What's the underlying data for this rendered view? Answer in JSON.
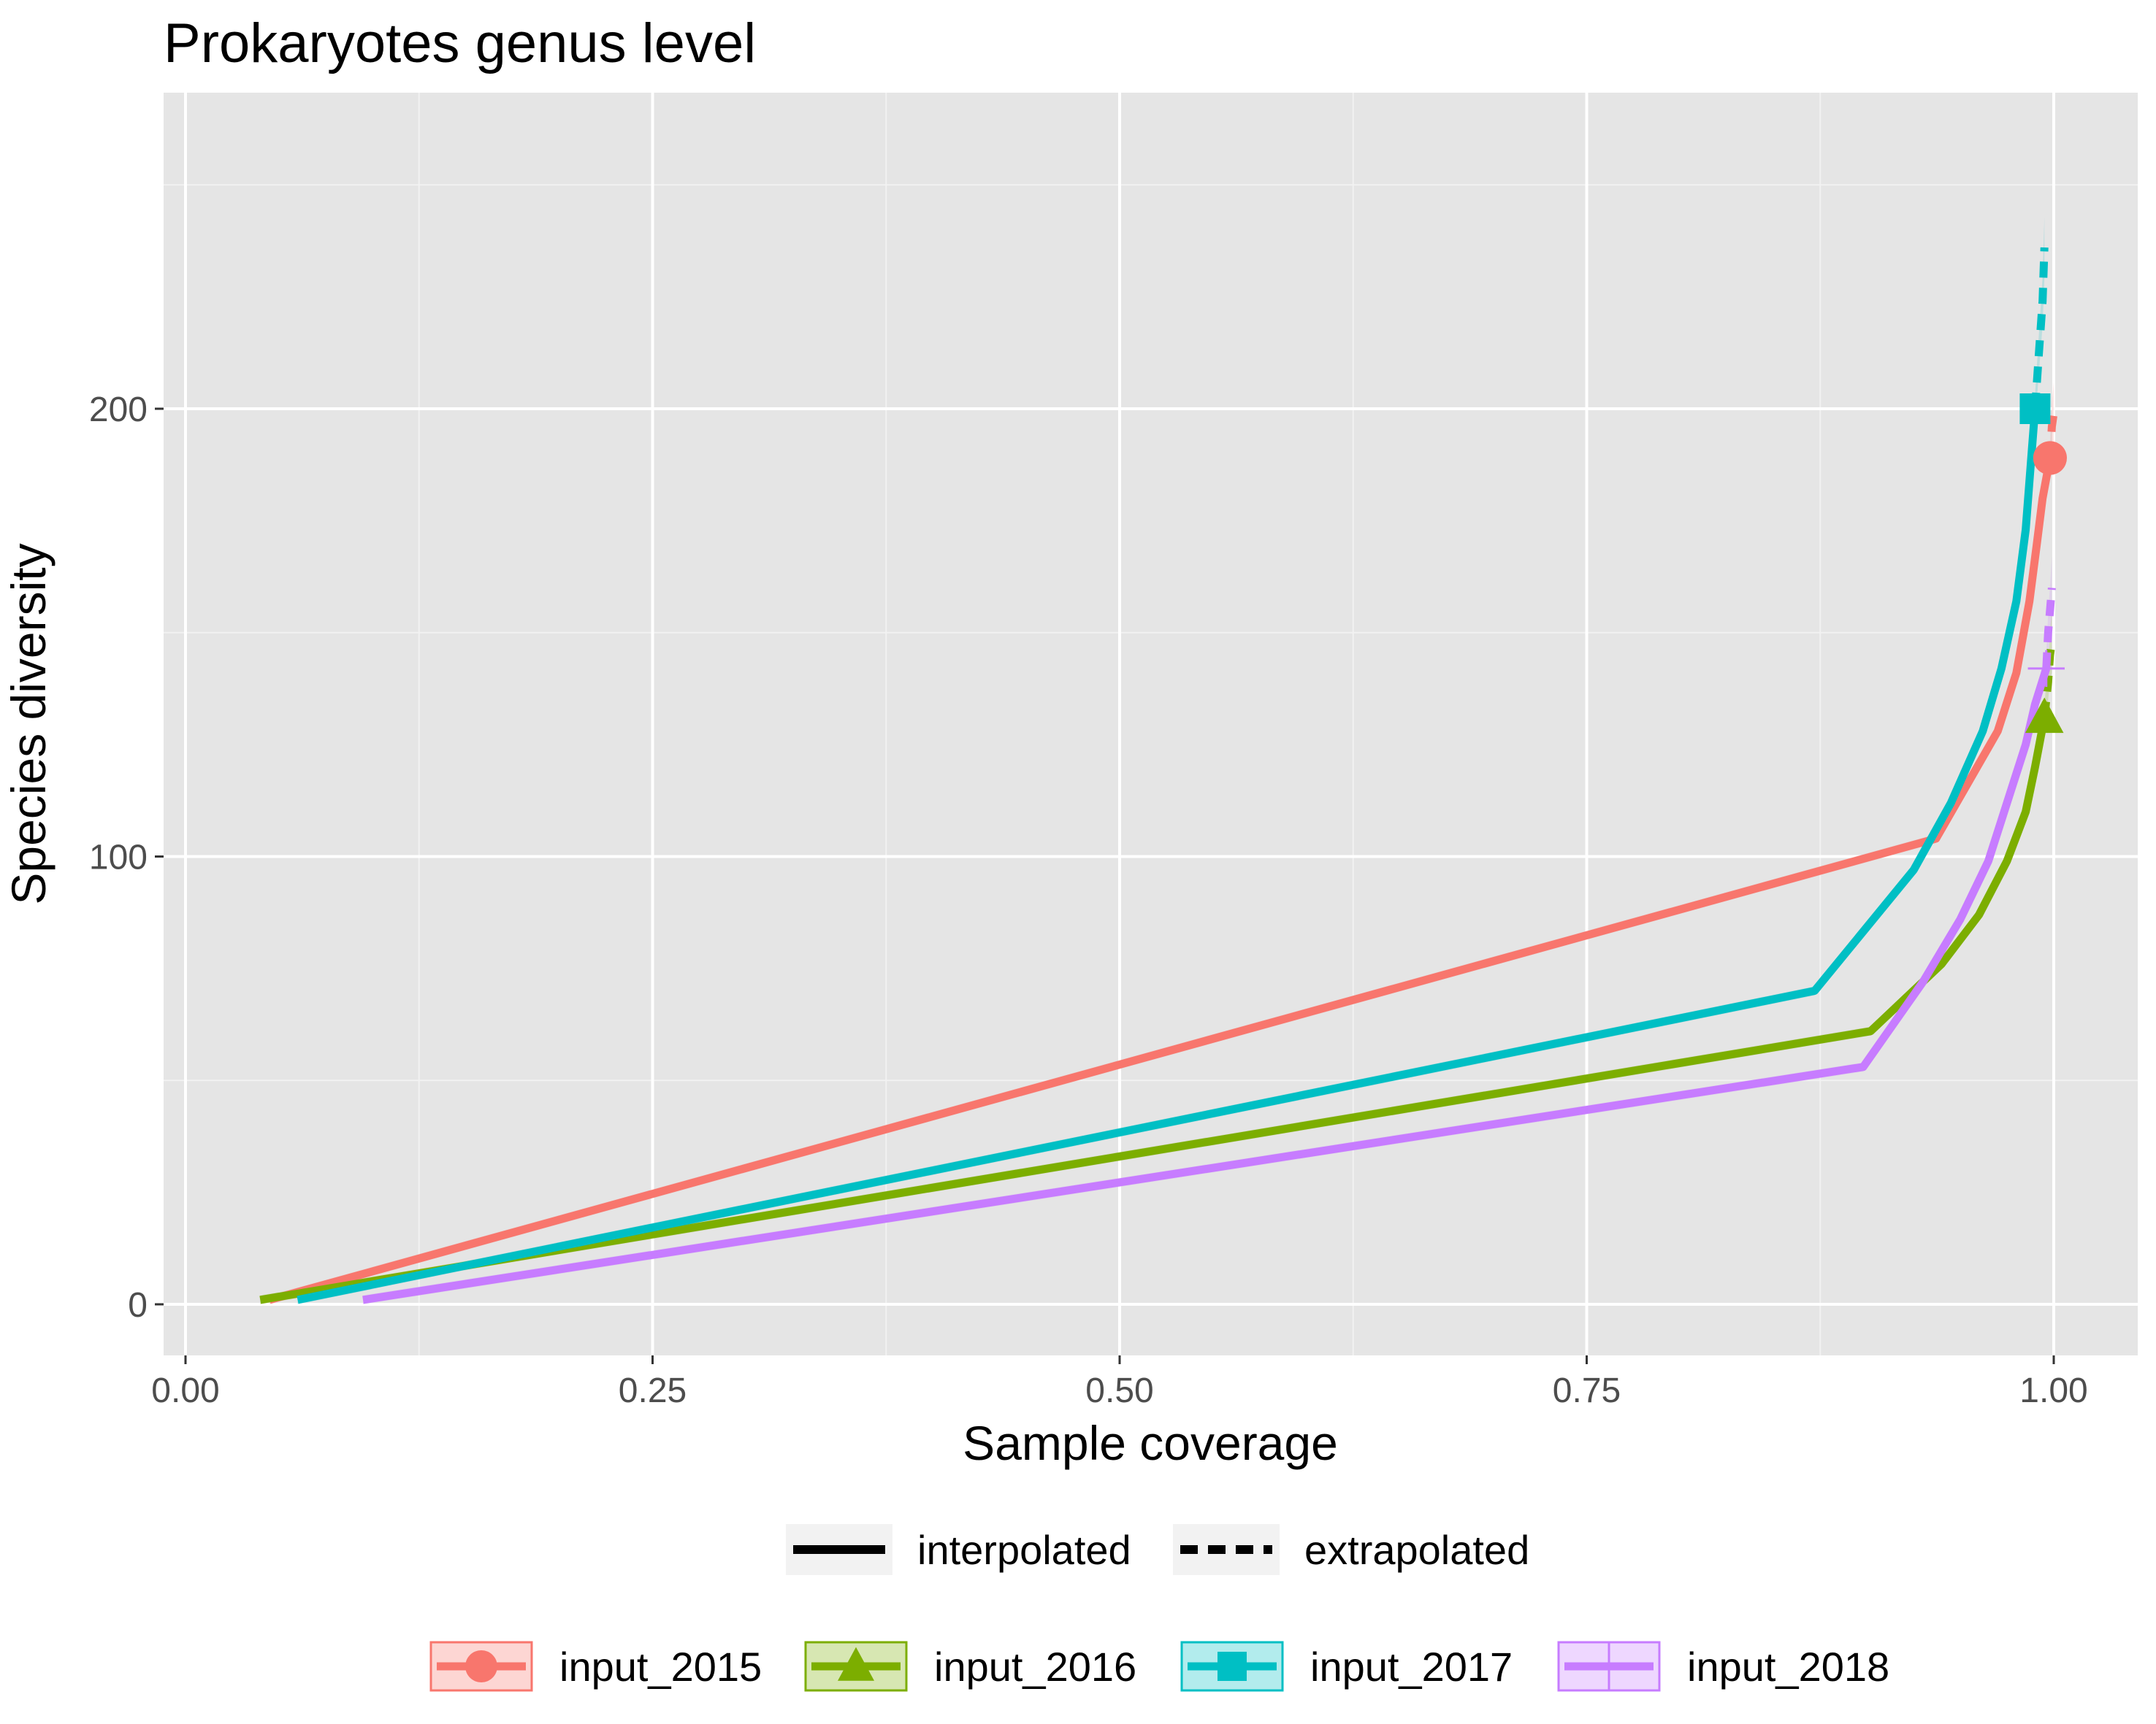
{
  "chart_data": {
    "type": "line",
    "title": "Prokaryotes genus level",
    "xlabel": "Sample coverage",
    "ylabel": "Species diversity",
    "xlim": [
      -0.01,
      1.05
    ],
    "ylim": [
      -12,
      270
    ],
    "x_ticks": [
      0.0,
      0.25,
      0.5,
      0.75,
      1.0
    ],
    "x_tick_labels": [
      "0.00",
      "0.25",
      "0.50",
      "0.75",
      "1.00"
    ],
    "y_ticks": [
      0,
      100,
      200
    ],
    "y_tick_labels": [
      "0",
      "100",
      "200"
    ],
    "grid": true,
    "background": "#e5e5e5",
    "linetype_legend": {
      "position": "bottom",
      "items": [
        {
          "label": "interpolated",
          "linetype": "solid"
        },
        {
          "label": "extrapolated",
          "linetype": "dashed"
        }
      ]
    },
    "series_legend": {
      "position": "bottom",
      "items": [
        {
          "label": "input_2015",
          "shape": "circle"
        },
        {
          "label": "input_2016",
          "shape": "triangle"
        },
        {
          "label": "input_2017",
          "shape": "square"
        },
        {
          "label": "input_2018",
          "shape": "cross"
        }
      ]
    },
    "series": [
      {
        "name": "input_2015",
        "color": "#f8766d",
        "marker": "circle",
        "observed": [
          0.998,
          189
        ],
        "interpolated": [
          [
            0.045,
            1
          ],
          [
            0.937,
            104
          ],
          [
            0.97,
            128
          ],
          [
            0.98,
            141
          ],
          [
            0.987,
            157
          ],
          [
            0.991,
            170
          ],
          [
            0.994,
            180
          ],
          [
            0.998,
            189
          ]
        ],
        "extrapolated": [
          [
            0.998,
            189
          ],
          [
            0.999,
            196
          ],
          [
            1.0,
            199
          ]
        ]
      },
      {
        "name": "input_2016",
        "color": "#7cae00",
        "marker": "triangle",
        "observed": [
          0.995,
          131
        ],
        "interpolated": [
          [
            0.04,
            1
          ],
          [
            0.902,
            61
          ],
          [
            0.94,
            76
          ],
          [
            0.96,
            87
          ],
          [
            0.975,
            99
          ],
          [
            0.985,
            110
          ],
          [
            0.99,
            120
          ],
          [
            0.995,
            131
          ]
        ],
        "extrapolated": [
          [
            0.995,
            131
          ],
          [
            0.997,
            139
          ],
          [
            0.998,
            145
          ],
          [
            0.999,
            148
          ]
        ]
      },
      {
        "name": "input_2017",
        "color": "#00bfc4",
        "marker": "square",
        "observed": [
          0.99,
          200
        ],
        "interpolated": [
          [
            0.06,
            1
          ],
          [
            0.872,
            70
          ],
          [
            0.925,
            97
          ],
          [
            0.945,
            112
          ],
          [
            0.962,
            128
          ],
          [
            0.972,
            142
          ],
          [
            0.98,
            157
          ],
          [
            0.985,
            173
          ],
          [
            0.99,
            200
          ]
        ],
        "extrapolated": [
          [
            0.99,
            200
          ],
          [
            0.992,
            212
          ],
          [
            0.994,
            224
          ],
          [
            0.995,
            236
          ]
        ]
      },
      {
        "name": "input_2018",
        "color": "#c77cff",
        "marker": "cross",
        "observed": [
          0.996,
          142
        ],
        "interpolated": [
          [
            0.095,
            1
          ],
          [
            0.898,
            53
          ],
          [
            0.93,
            72
          ],
          [
            0.95,
            86
          ],
          [
            0.965,
            99
          ],
          [
            0.975,
            112
          ],
          [
            0.985,
            125
          ],
          [
            0.99,
            134
          ],
          [
            0.996,
            142
          ]
        ],
        "extrapolated": [
          [
            0.996,
            142
          ],
          [
            0.997,
            150
          ],
          [
            0.998,
            155
          ],
          [
            0.999,
            160
          ]
        ]
      }
    ]
  }
}
